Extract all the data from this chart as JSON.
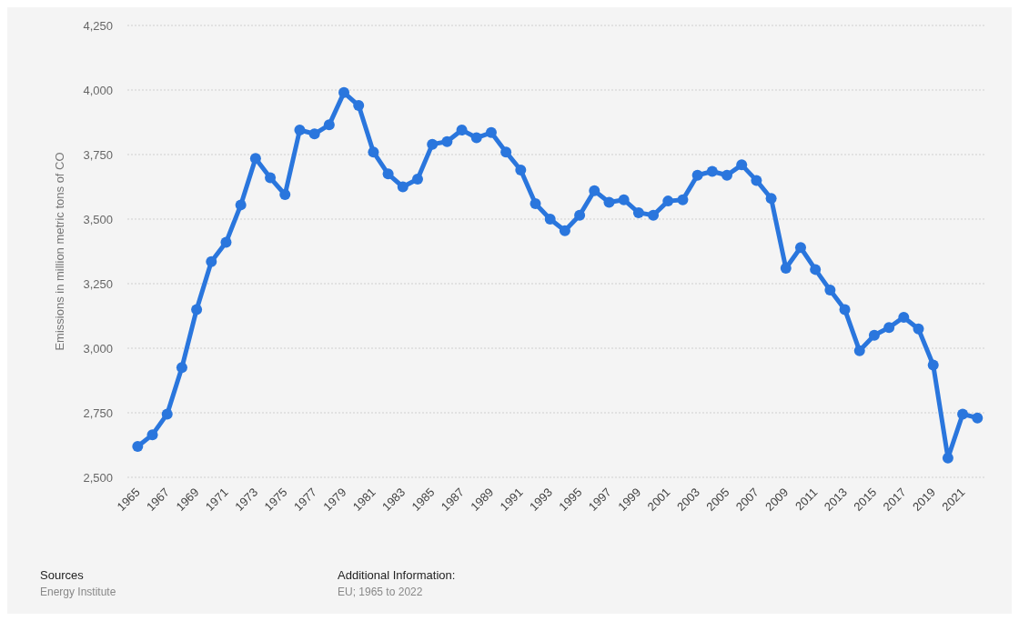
{
  "chart_data": {
    "type": "line",
    "x": [
      1965,
      1966,
      1967,
      1968,
      1969,
      1970,
      1971,
      1972,
      1973,
      1974,
      1975,
      1976,
      1977,
      1978,
      1979,
      1980,
      1981,
      1982,
      1983,
      1984,
      1985,
      1986,
      1987,
      1988,
      1989,
      1990,
      1991,
      1992,
      1993,
      1994,
      1995,
      1996,
      1997,
      1998,
      1999,
      2000,
      2001,
      2002,
      2003,
      2004,
      2005,
      2006,
      2007,
      2008,
      2009,
      2010,
      2011,
      2012,
      2013,
      2014,
      2015,
      2016,
      2017,
      2018,
      2019,
      2020,
      2021,
      2022
    ],
    "series": [
      {
        "color": "#2a76dd",
        "values": [
          2620,
          2665,
          2745,
          2925,
          3150,
          3335,
          3410,
          3555,
          3735,
          3660,
          3595,
          3845,
          3830,
          3865,
          3990,
          3940,
          3760,
          3675,
          3625,
          3655,
          3790,
          3800,
          3845,
          3815,
          3835,
          3760,
          3690,
          3560,
          3500,
          3455,
          3515,
          3610,
          3565,
          3575,
          3525,
          3515,
          3570,
          3575,
          3670,
          3685,
          3670,
          3710,
          3650,
          3580,
          3310,
          3390,
          3305,
          3225,
          3150,
          2990,
          3050,
          3080,
          3120,
          3075,
          2935,
          2575,
          2745,
          2730
        ]
      }
    ],
    "ylabel": "Emissions in million metric tons of CO",
    "xlim": [
      1964.3,
      2022.6
    ],
    "xticks": [
      1965,
      1967,
      1969,
      1971,
      1973,
      1975,
      1977,
      1979,
      1981,
      1983,
      1985,
      1987,
      1989,
      1991,
      1993,
      1995,
      1997,
      1999,
      2001,
      2003,
      2005,
      2007,
      2009,
      2011,
      2013,
      2015,
      2017,
      2019,
      2021
    ],
    "ylim": [
      2500,
      4250
    ],
    "yticks": [
      {
        "value": 2500,
        "label": "2,500"
      },
      {
        "value": 2750,
        "label": "2,750"
      },
      {
        "value": 3000,
        "label": "3,000"
      },
      {
        "value": 3250,
        "label": "3,250"
      },
      {
        "value": 3500,
        "label": "3,500"
      },
      {
        "value": 3750,
        "label": "3,750"
      },
      {
        "value": 4000,
        "label": "4,000"
      },
      {
        "value": 4250,
        "label": "4,250"
      }
    ],
    "grid": "y",
    "marker": "circle",
    "line_style": "solid",
    "annotations": [
      "Sources",
      "Energy Institute",
      "Additional Information:",
      "EU; 1965 to 2022"
    ]
  }
}
